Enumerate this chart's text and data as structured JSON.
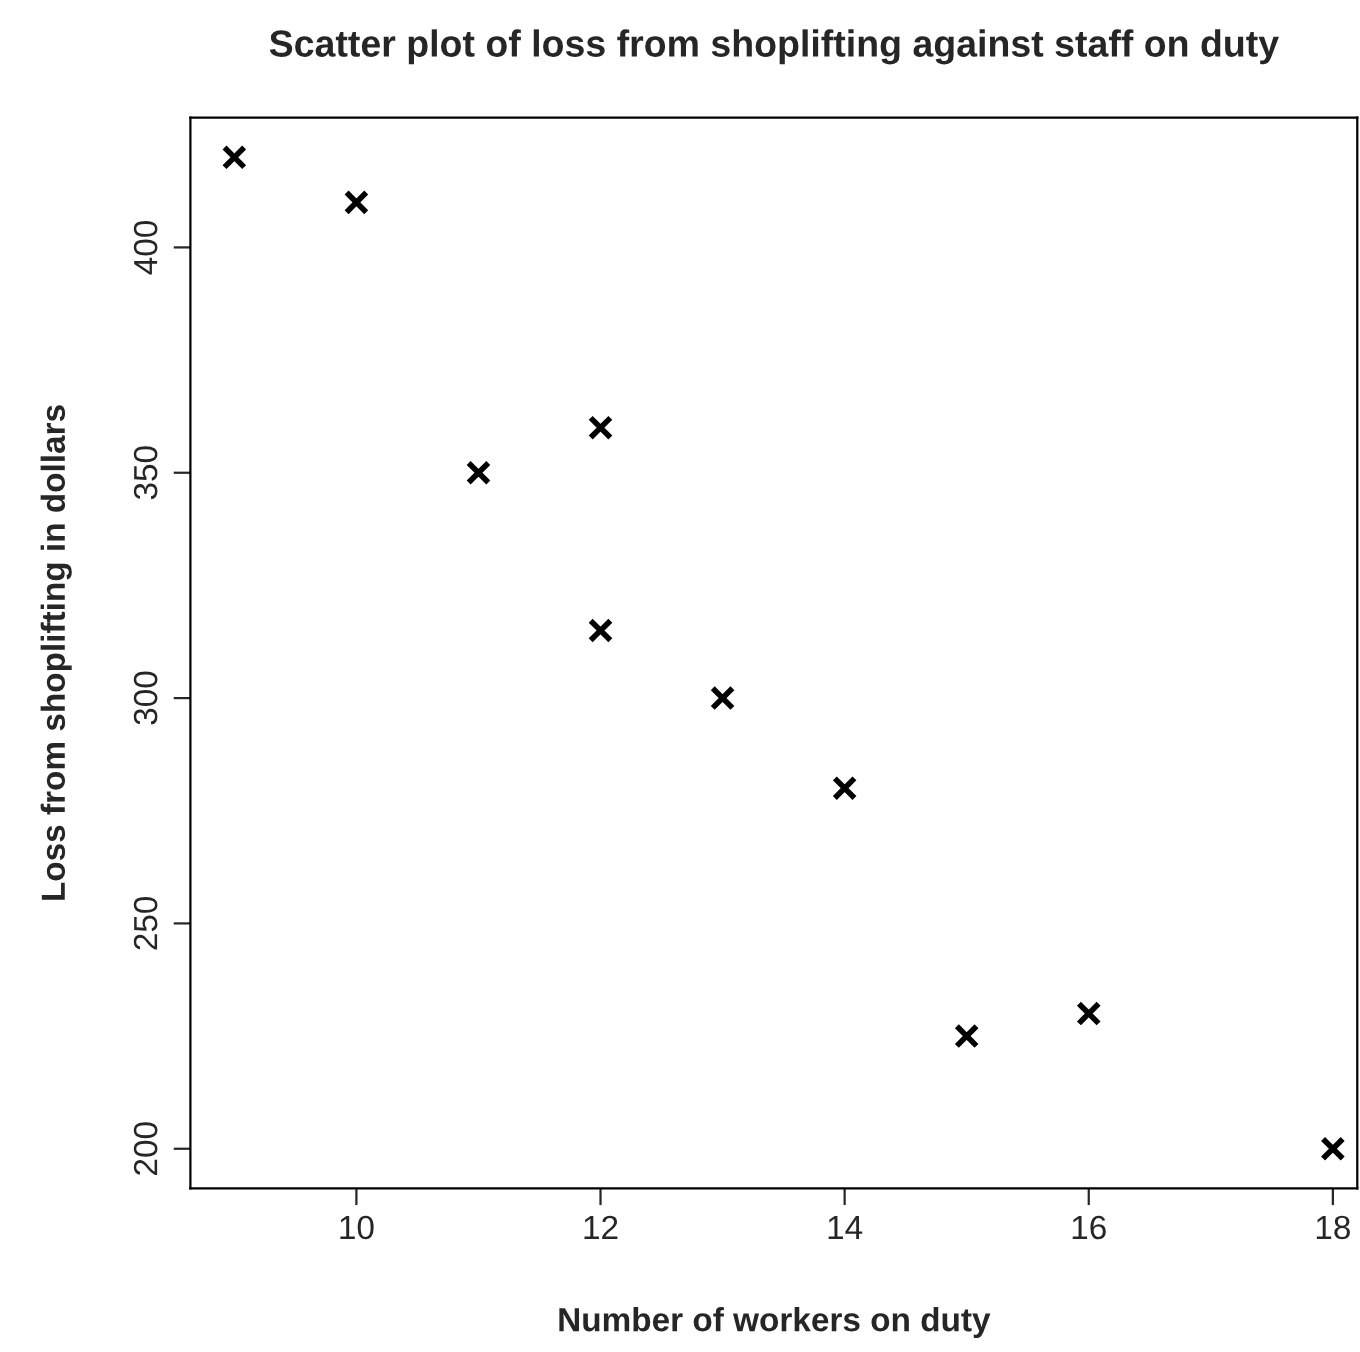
{
  "chart_data": {
    "type": "scatter",
    "title": "Scatter plot of loss from shoplifting against staff on duty",
    "xlabel": "Number of workers on duty",
    "ylabel": "Loss from shoplifting in dollars",
    "x": [
      9,
      10,
      11,
      12,
      12,
      13,
      14,
      15,
      16,
      18
    ],
    "series": [
      {
        "color": "#000000",
        "values": [
          420,
          410,
          350,
          360,
          315,
          300,
          280,
          225,
          230,
          200
        ]
      }
    ],
    "xlim": [
      8.64,
      18.2
    ],
    "xticks": [
      10,
      12,
      14,
      16,
      18
    ],
    "ylim": [
      191.2,
      428.8
    ],
    "yticks": [
      200,
      250,
      300,
      350,
      400
    ],
    "grid": false,
    "legend": false,
    "marker": "cross"
  }
}
